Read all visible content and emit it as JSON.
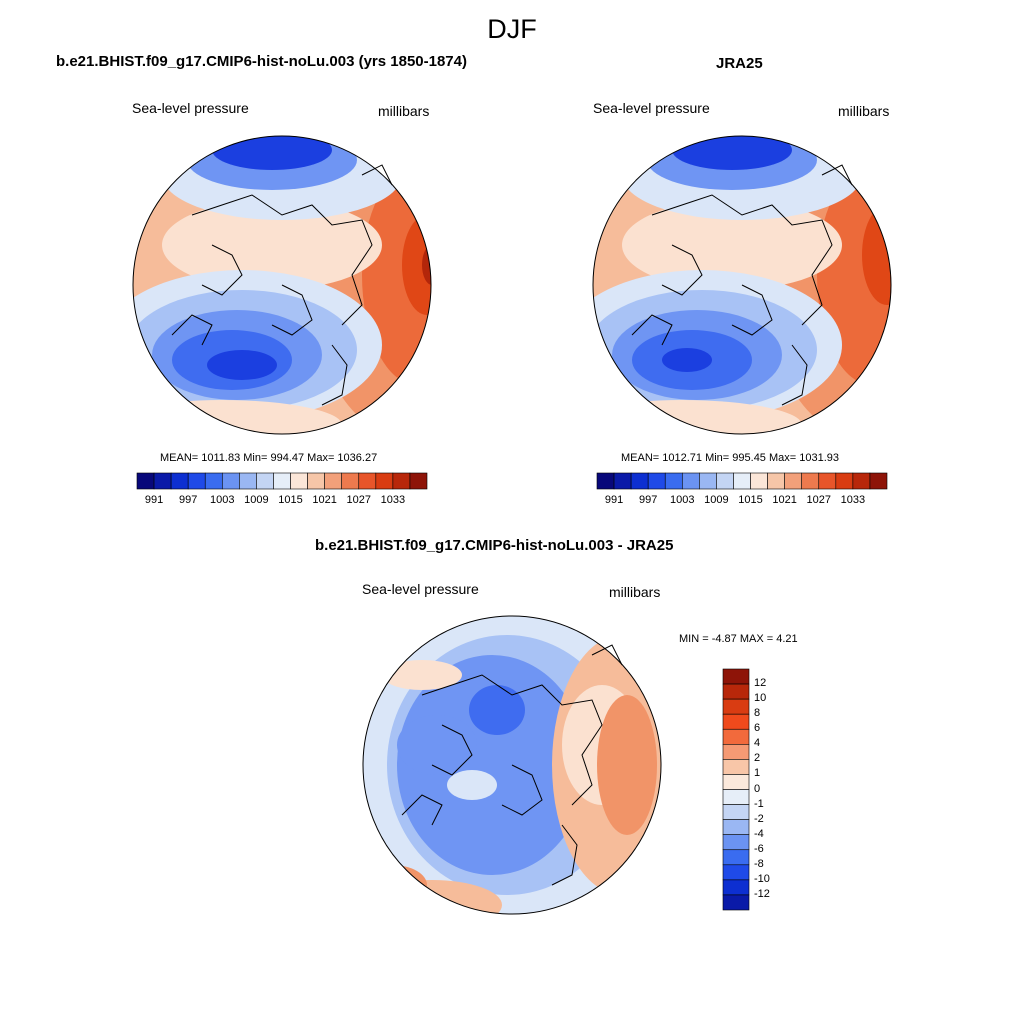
{
  "figure": {
    "title": "DJF"
  },
  "panels": [
    {
      "title": "b.e21.BHIST.f09_g17.CMIP6-hist-noLu.003 (yrs 1850-1874)",
      "left_label": "Sea-level pressure",
      "right_label": "millibars",
      "stats": "MEAN= 1011.83  Min= 994.47  Max= 1036.27"
    },
    {
      "title": "JRA25",
      "left_label": "Sea-level pressure",
      "right_label": "millibars",
      "stats": "MEAN= 1012.71  Min= 995.45  Max= 1031.93"
    },
    {
      "title": "b.e21.BHIST.f09_g17.CMIP6-hist-noLu.003 - JRA25",
      "left_label": "Sea-level pressure",
      "right_label": "millibars",
      "stats": "MIN =  -4.87 MAX =   4.21"
    }
  ],
  "colorbar_abs": {
    "levels": [
      "991",
      "997",
      "1003",
      "1009",
      "1015",
      "1021",
      "1027",
      "1033"
    ],
    "colors": [
      "#08087a",
      "#0a1aa8",
      "#0d2fd1",
      "#1f4ae8",
      "#3a6cf0",
      "#6b93f2",
      "#9ab7f3",
      "#c4d5f4",
      "#e6eef8",
      "#fbe6d8",
      "#f6c6a8",
      "#f2a07a",
      "#ee7a4e",
      "#e8552a",
      "#d93c12",
      "#b8270a",
      "#8e1408"
    ]
  },
  "colorbar_diff": {
    "levels": [
      "12",
      "10",
      "8",
      "6",
      "4",
      "2",
      "1",
      "0",
      "-1",
      "-2",
      "-4",
      "-6",
      "-8",
      "-10",
      "-12"
    ],
    "colors": [
      "#8e1408",
      "#b8270a",
      "#d93c12",
      "#f04a1c",
      "#f26a3c",
      "#f59a74",
      "#f8c6a8",
      "#fbe9dc",
      "#e6eef8",
      "#c4d5f4",
      "#9ab7f3",
      "#6b93f2",
      "#3a6cf0",
      "#1f4ae8",
      "#0d2fd1",
      "#0a1aa8"
    ]
  },
  "map_colors": {
    "deep_blue": "#1b3fe0",
    "blue": "#3f6cf0",
    "mid_blue": "#6f95f3",
    "light_blue": "#a8c2f5",
    "pale_blue": "#dae6f8",
    "pale_orange": "#fbe1d0",
    "light_orange": "#f6bc9a",
    "orange": "#f19468",
    "red_orange": "#ec6a3a",
    "red": "#e04716",
    "dark_red": "#b3260a"
  }
}
